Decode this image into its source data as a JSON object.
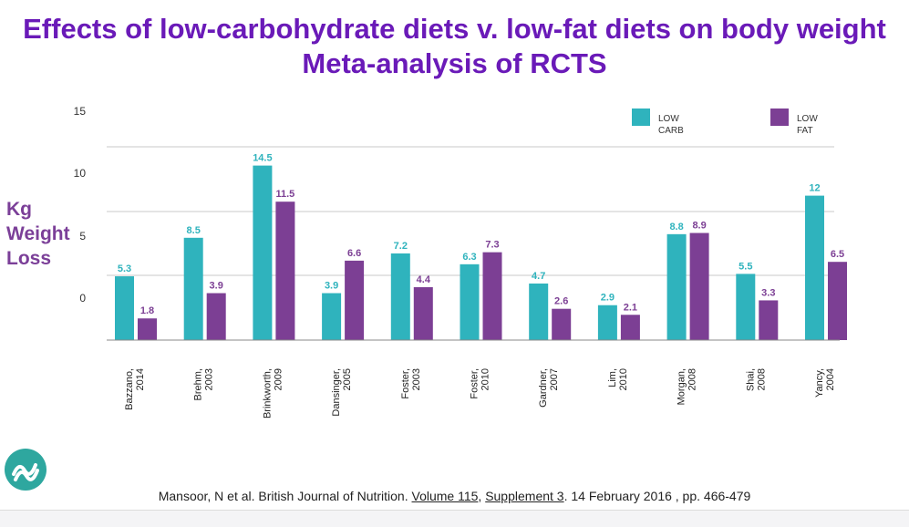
{
  "title_line1": "Effects of low-carbohydrate diets v. low-fat diets on body weight",
  "title_line2": "Meta-analysis of RCTS",
  "citation": {
    "part1": "Mansoor, N et al. British Journal of Nutrition. ",
    "volume": "Volume 115",
    "sep": ", ",
    "supplement": "Supplement 3",
    "part2": ". 14 February 2016 , pp. 466-479"
  },
  "colors": {
    "low_carb": "#2fb3bd",
    "low_fat": "#7c3f94",
    "title": "#6a1ab8"
  },
  "chart_data": {
    "type": "bar",
    "title": "Effects of low-carbohydrate diets v. low-fat diets on body weight",
    "subtitle": "Meta-analysis of RCTS",
    "ylabel": "Kg Weight Loss",
    "xlabel": "",
    "yticks": [
      "15",
      "10",
      "5",
      "0"
    ],
    "ylim": [
      0,
      15
    ],
    "grid": true,
    "legend_position": "top-right",
    "categories": [
      [
        "Bazzano,",
        "2014"
      ],
      [
        "Brehm,",
        "2003"
      ],
      [
        "Brinkworth,",
        "2009"
      ],
      [
        "Dansinger,",
        "2005"
      ],
      [
        "Foster,",
        "2003"
      ],
      [
        "Foster,",
        "2010"
      ],
      [
        "Gardner,",
        "2007"
      ],
      [
        "Lim,",
        "2010"
      ],
      [
        "Morgan,",
        "2008"
      ],
      [
        "Shai,",
        "2008"
      ],
      [
        "Yancy,",
        "2004"
      ]
    ],
    "series": [
      {
        "name": [
          "LOW",
          "CARB"
        ],
        "color": "#2fb3bd",
        "values": [
          5.3,
          8.5,
          14.5,
          3.9,
          7.2,
          6.3,
          4.7,
          2.9,
          8.8,
          5.5,
          12
        ],
        "labels": [
          "5.3",
          "8.5",
          "14.5",
          "3.9",
          "7.2",
          "6.3",
          "4.7",
          "2.9",
          "8.8",
          "5.5",
          "12"
        ]
      },
      {
        "name": [
          "LOW",
          "FAT"
        ],
        "color": "#7c3f94",
        "values": [
          1.8,
          3.9,
          11.5,
          6.6,
          4.4,
          7.3,
          2.6,
          2.1,
          8.9,
          3.3,
          6.5
        ],
        "labels": [
          "1.8",
          "3.9",
          "11.5",
          "6.6",
          "4.4",
          "7.3",
          "2.6",
          "2.1",
          "8.9",
          "3.3",
          "6.5"
        ]
      }
    ]
  }
}
